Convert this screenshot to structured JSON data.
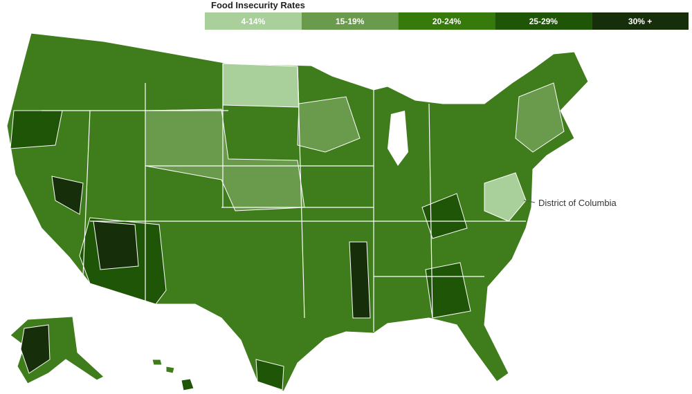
{
  "legend": {
    "title": "Food Insecurity Rates",
    "items": [
      {
        "label": "4-14%",
        "color": "#a9cf9a"
      },
      {
        "label": "15-19%",
        "color": "#6a9a4c"
      },
      {
        "label": "20-24%",
        "color": "#357a0b"
      },
      {
        "label": "25-29%",
        "color": "#1f5507"
      },
      {
        "label": "30% +",
        "color": "#172e0a"
      }
    ]
  },
  "annotations": [
    {
      "label": "District of Columbia"
    }
  ]
}
